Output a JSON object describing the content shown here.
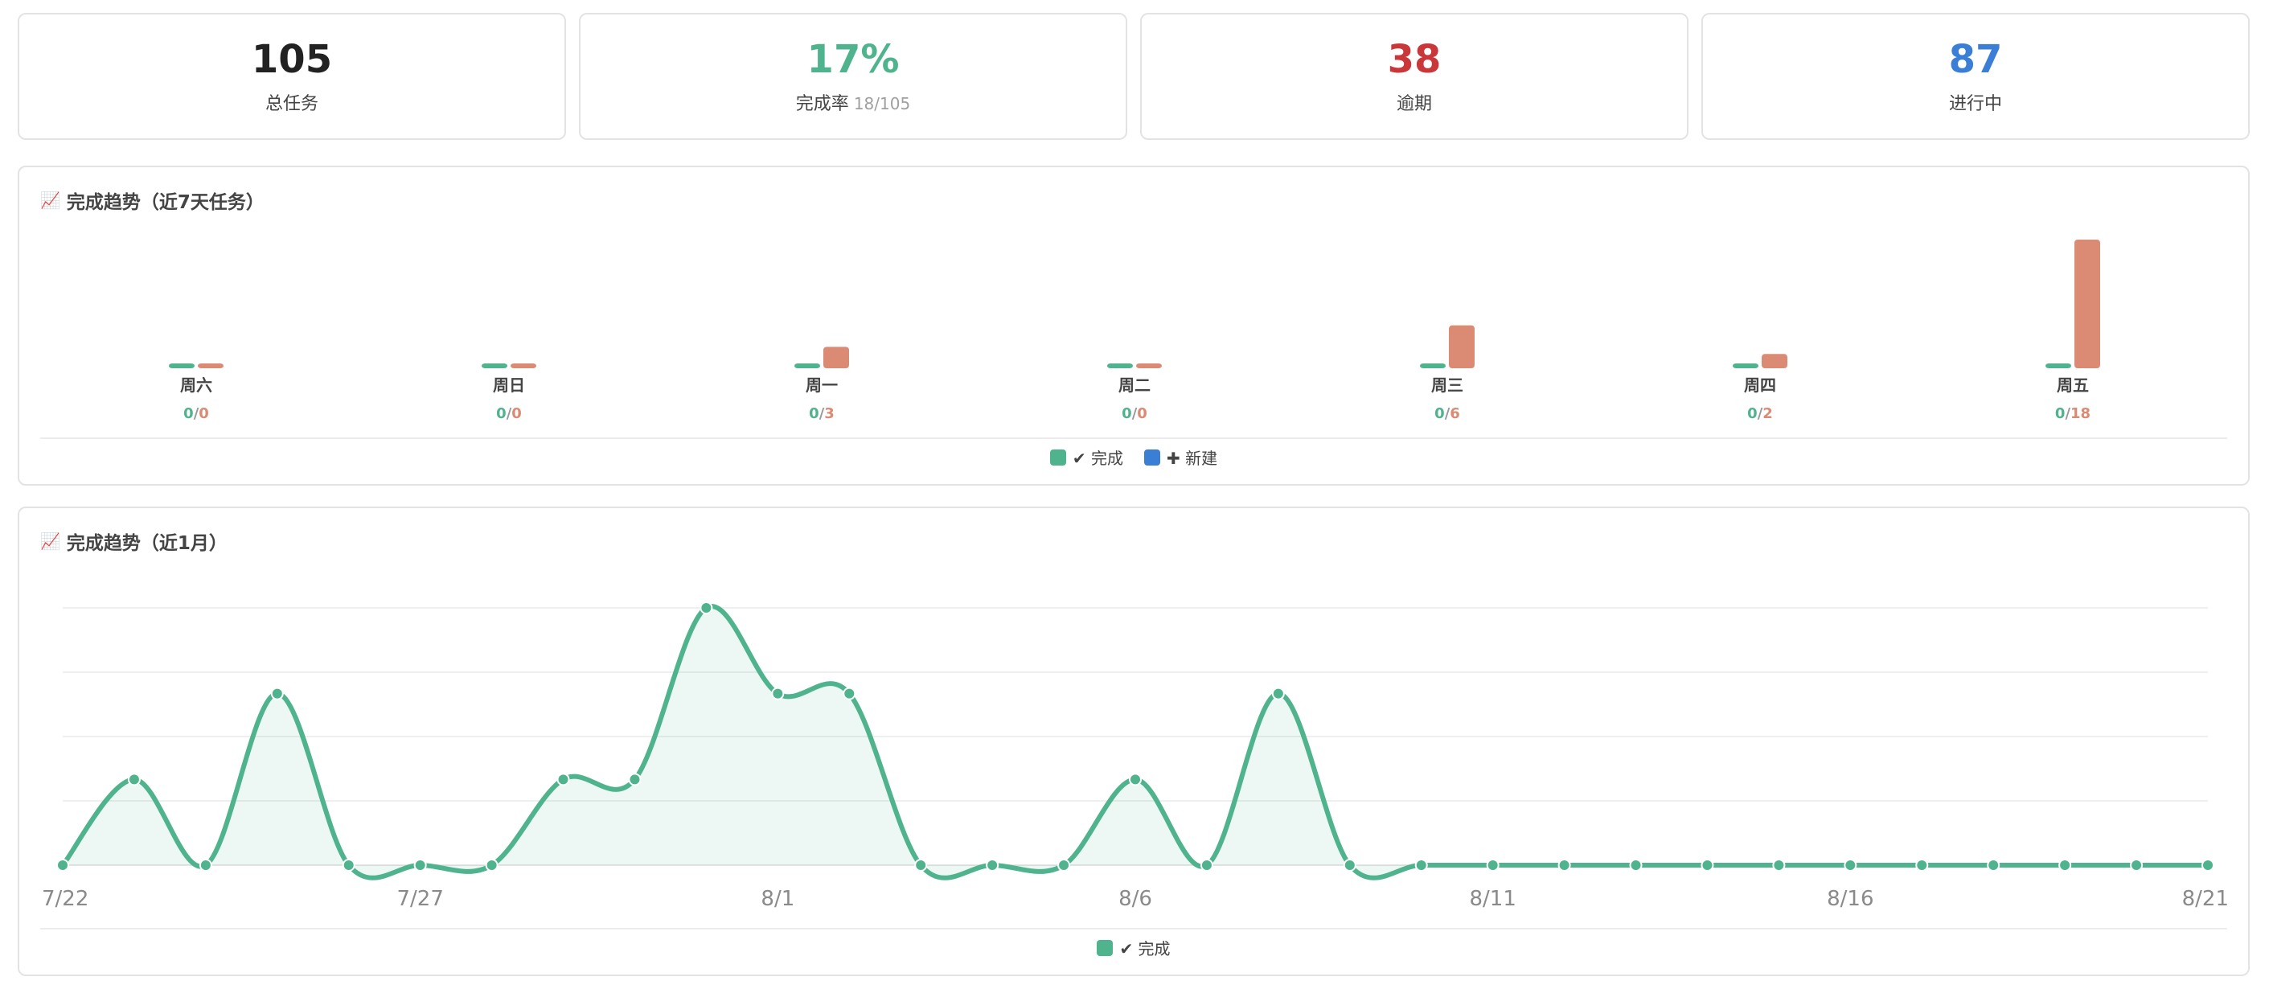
{
  "stats": [
    {
      "value": "105",
      "label": "总任务",
      "sub": "",
      "color": "#222222"
    },
    {
      "value": "17%",
      "label": "完成率",
      "sub": "18/105",
      "color": "#4fb38e"
    },
    {
      "value": "38",
      "label": "逾期",
      "sub": "",
      "color": "#c9373a"
    },
    {
      "value": "87",
      "label": "进行中",
      "sub": "",
      "color": "#3a7fd5"
    }
  ],
  "weekly": {
    "title": "完成趋势（近7天任务）",
    "icon": "📈",
    "legend": [
      {
        "label": "✔ 完成",
        "color": "#4fb38e"
      },
      {
        "label": "✚ 新建",
        "color": "#3a7fd5"
      }
    ]
  },
  "monthly": {
    "title": "完成趋势（近1月）",
    "icon": "📈",
    "legend": [
      {
        "label": "✔ 完成",
        "color": "#4fb38e"
      }
    ]
  },
  "chart_data": [
    {
      "type": "bar",
      "title": "完成趋势（近7天任务）",
      "categories": [
        "周六",
        "周日",
        "周一",
        "周二",
        "周三",
        "周四",
        "周五"
      ],
      "series": [
        {
          "name": "完成",
          "color": "#4fb38e",
          "values": [
            0,
            0,
            0,
            0,
            0,
            0,
            0
          ]
        },
        {
          "color": "#db8a74",
          "values": [
            0,
            0,
            3,
            0,
            6,
            2,
            18
          ]
        }
      ],
      "legend": [
        "✔ 完成",
        "✚ 新建"
      ],
      "legend_position": "bottom",
      "grid": false
    },
    {
      "type": "area",
      "title": "完成趋势（近1月）",
      "x": [
        "7/22",
        "7/23",
        "7/24",
        "7/25",
        "7/26",
        "7/27",
        "7/28",
        "7/29",
        "7/30",
        "7/31",
        "8/1",
        "8/2",
        "8/3",
        "8/4",
        "8/5",
        "8/6",
        "8/7",
        "8/8",
        "8/9",
        "8/10",
        "8/11",
        "8/12",
        "8/13",
        "8/14",
        "8/15",
        "8/16",
        "8/17",
        "8/18",
        "8/19",
        "8/20",
        "8/21"
      ],
      "x_tick_labels": [
        "7/22",
        "7/27",
        "8/1",
        "8/6",
        "8/11",
        "8/16",
        "8/21"
      ],
      "series": [
        {
          "name": "完成",
          "color": "#4fb38e",
          "values": [
            0,
            2,
            0,
            4,
            0,
            0,
            0,
            2,
            2,
            6,
            4,
            4,
            0,
            0,
            0,
            2,
            0,
            4,
            0,
            0,
            0,
            0,
            0,
            0,
            0,
            0,
            0,
            0,
            0,
            0,
            0
          ]
        }
      ],
      "ylim": [
        0,
        6
      ],
      "grid": true,
      "legend": [
        "✔ 完成"
      ],
      "legend_position": "bottom"
    }
  ]
}
